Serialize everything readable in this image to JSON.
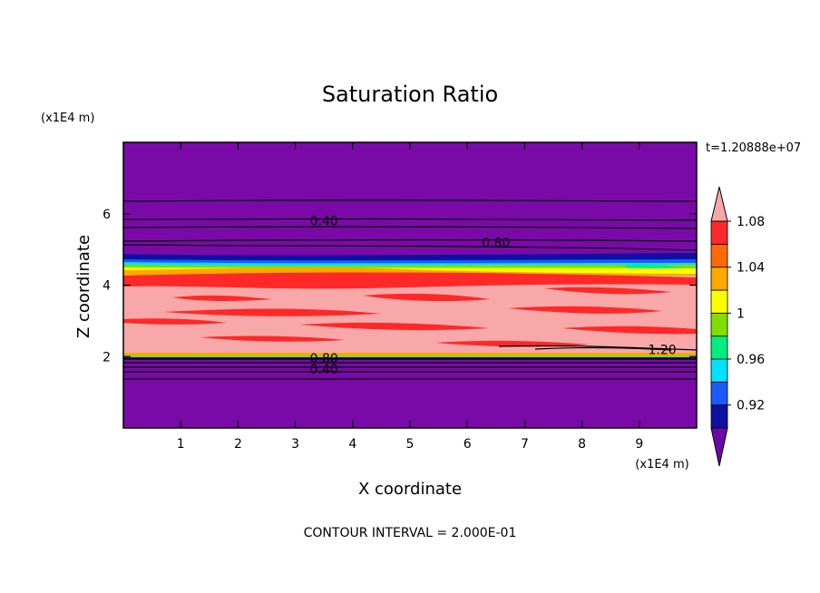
{
  "chart_data": {
    "type": "contour",
    "title": "Saturation Ratio",
    "xlabel": "X coordinate",
    "ylabel": "Z coordinate",
    "x_unit": "(x1E4 m)",
    "y_unit": "(x1E4 m)",
    "time_label": "t=1.20888e+07",
    "footer": "CONTOUR INTERVAL = 2.000E-01",
    "xlim": [
      0,
      10
    ],
    "ylim": [
      0,
      8
    ],
    "x_ticks": [
      "1",
      "2",
      "3",
      "4",
      "5",
      "6",
      "7",
      "8",
      "9"
    ],
    "y_ticks": [
      "2",
      "4",
      "6"
    ],
    "contour_labels": [
      {
        "text": "0.40",
        "x": 3.5,
        "y": 5.8
      },
      {
        "text": "0.80",
        "x": 6.5,
        "y": 5.2
      },
      {
        "text": "1.20",
        "x": 9.4,
        "y": 2.2
      },
      {
        "text": "0.80",
        "x": 3.5,
        "y": 1.95
      },
      {
        "text": "0.40",
        "x": 3.5,
        "y": 1.65
      }
    ],
    "colorbar": {
      "levels": [
        "0.92",
        "0.96",
        "1",
        "1.04",
        "1.08"
      ],
      "colors": [
        "#6a0aa8",
        "#1010a0",
        "#1a5aff",
        "#00e0ff",
        "#00ee80",
        "#7fdf00",
        "#ffff00",
        "#ffa800",
        "#ff6a00",
        "#ff2828",
        "#f8a8a8"
      ]
    }
  }
}
